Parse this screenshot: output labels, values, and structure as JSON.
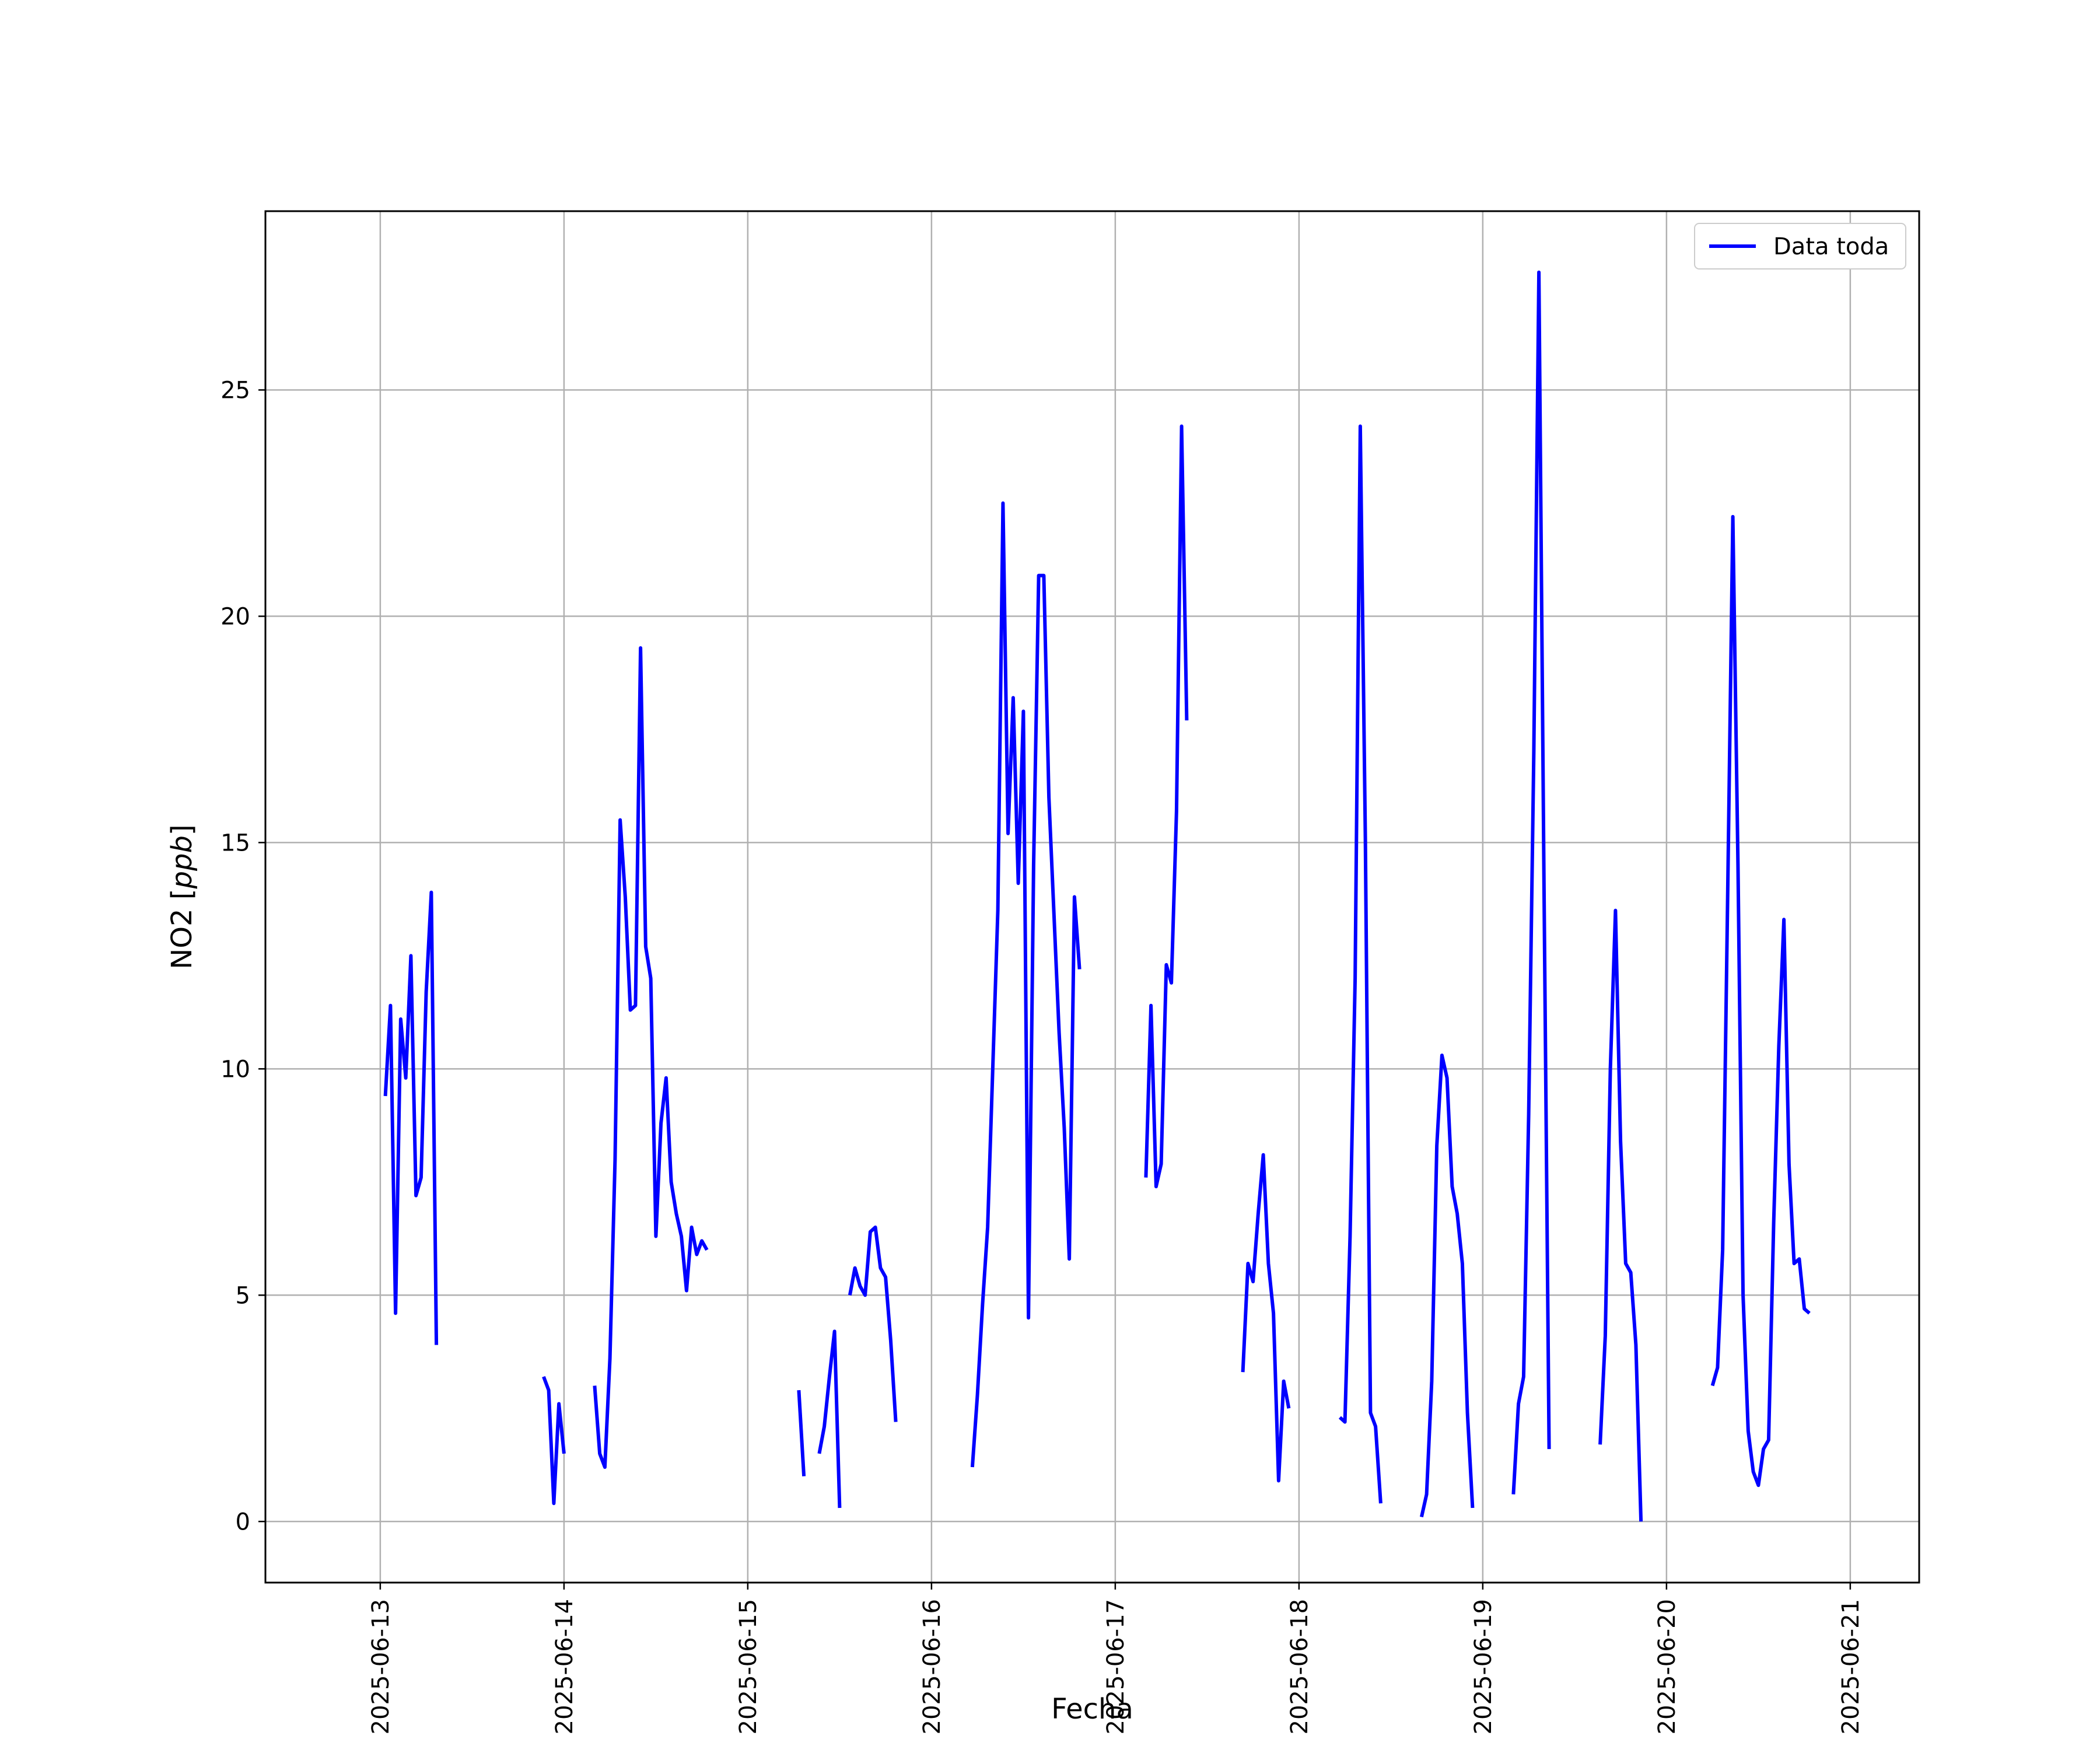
{
  "chart_data": {
    "type": "line",
    "title": "",
    "xlabel": "Fecha",
    "ylabel": "NO2 [ppb]",
    "ylabel_math": "ppb",
    "x_ticks": [
      "2025-06-13",
      "2025-06-14",
      "2025-06-15",
      "2025-06-16",
      "2025-06-17",
      "2025-06-18",
      "2025-06-19",
      "2025-06-20",
      "2025-06-21"
    ],
    "y_ticks": [
      "0",
      "5",
      "10",
      "15",
      "20",
      "25"
    ],
    "ylim": [
      -1.35,
      28.95
    ],
    "xlim": [
      "2025-06-12 09:00",
      "2025-06-21 09:00"
    ],
    "grid": true,
    "legend_position": "top-right",
    "series": [
      {
        "name": "Data toda",
        "color": "#0000ff",
        "segments": [
          [
            [
              "2025-06-13 00:40",
              9.4
            ],
            [
              "2025-06-13 01:20",
              11.4
            ],
            [
              "2025-06-13 02:00",
              4.6
            ],
            [
              "2025-06-13 02:40",
              11.1
            ],
            [
              "2025-06-13 03:20",
              9.8
            ],
            [
              "2025-06-13 04:00",
              12.5
            ],
            [
              "2025-06-13 04:40",
              7.2
            ],
            [
              "2025-06-13 05:20",
              7.6
            ],
            [
              "2025-06-13 06:00",
              11.7
            ],
            [
              "2025-06-13 06:40",
              13.9
            ],
            [
              "2025-06-13 07:20",
              3.9
            ]
          ],
          [
            [
              "2025-06-13 21:20",
              3.2
            ],
            [
              "2025-06-13 22:00",
              2.9
            ],
            [
              "2025-06-13 22:40",
              0.4
            ],
            [
              "2025-06-13 23:20",
              2.6
            ],
            [
              "2025-06-14 00:00",
              1.5
            ]
          ],
          [
            [
              "2025-06-14 04:00",
              3.0
            ],
            [
              "2025-06-14 04:40",
              1.5
            ],
            [
              "2025-06-14 05:20",
              1.2
            ],
            [
              "2025-06-14 06:00",
              3.6
            ],
            [
              "2025-06-14 06:40",
              8.0
            ],
            [
              "2025-06-14 07:20",
              15.5
            ],
            [
              "2025-06-14 08:00",
              13.8
            ],
            [
              "2025-06-14 08:40",
              11.3
            ],
            [
              "2025-06-14 09:20",
              11.4
            ],
            [
              "2025-06-14 10:00",
              19.3
            ],
            [
              "2025-06-14 10:40",
              12.7
            ],
            [
              "2025-06-14 11:20",
              12.0
            ],
            [
              "2025-06-14 12:00",
              6.3
            ],
            [
              "2025-06-14 12:40",
              8.8
            ],
            [
              "2025-06-14 13:20",
              9.8
            ],
            [
              "2025-06-14 14:00",
              7.5
            ],
            [
              "2025-06-14 14:40",
              6.8
            ],
            [
              "2025-06-14 15:20",
              6.3
            ],
            [
              "2025-06-14 16:00",
              5.1
            ],
            [
              "2025-06-14 16:40",
              6.5
            ],
            [
              "2025-06-14 17:20",
              5.9
            ],
            [
              "2025-06-14 18:00",
              6.2
            ],
            [
              "2025-06-14 18:40",
              6.0
            ]
          ],
          [
            [
              "2025-06-15 06:40",
              2.9
            ],
            [
              "2025-06-15 07:20",
              1.0
            ]
          ],
          [
            [
              "2025-06-15 09:20",
              1.5
            ],
            [
              "2025-06-15 10:00",
              2.1
            ],
            [
              "2025-06-15 10:40",
              3.2
            ],
            [
              "2025-06-15 11:20",
              4.2
            ],
            [
              "2025-06-15 12:00",
              0.3
            ]
          ],
          [
            [
              "2025-06-15 13:20",
              5.0
            ],
            [
              "2025-06-15 14:00",
              5.6
            ],
            [
              "2025-06-15 14:40",
              5.2
            ],
            [
              "2025-06-15 15:20",
              5.0
            ],
            [
              "2025-06-15 16:00",
              6.4
            ],
            [
              "2025-06-15 16:40",
              6.5
            ],
            [
              "2025-06-15 17:20",
              5.6
            ],
            [
              "2025-06-15 18:00",
              5.4
            ],
            [
              "2025-06-15 18:40",
              4.0
            ],
            [
              "2025-06-15 19:20",
              2.2
            ]
          ],
          [
            [
              "2025-06-16 05:20",
              1.2
            ],
            [
              "2025-06-16 06:00",
              2.8
            ],
            [
              "2025-06-16 06:40",
              4.8
            ],
            [
              "2025-06-16 07:20",
              6.5
            ],
            [
              "2025-06-16 08:40",
              13.5
            ],
            [
              "2025-06-16 09:20",
              22.5
            ],
            [
              "2025-06-16 10:00",
              15.2
            ],
            [
              "2025-06-16 10:40",
              18.2
            ],
            [
              "2025-06-16 11:20",
              14.1
            ],
            [
              "2025-06-16 12:00",
              17.9
            ],
            [
              "2025-06-16 12:40",
              4.5
            ],
            [
              "2025-06-16 13:20",
              14.5
            ],
            [
              "2025-06-16 14:00",
              20.9
            ],
            [
              "2025-06-16 14:40",
              20.9
            ],
            [
              "2025-06-16 15:20",
              16.0
            ],
            [
              "2025-06-16 16:40",
              10.8
            ],
            [
              "2025-06-16 17:20",
              8.7
            ],
            [
              "2025-06-16 18:00",
              5.8
            ],
            [
              "2025-06-16 18:40",
              13.8
            ],
            [
              "2025-06-16 19:20",
              12.2
            ]
          ],
          [
            [
              "2025-06-17 04:00",
              7.6
            ],
            [
              "2025-06-17 04:40",
              11.4
            ],
            [
              "2025-06-17 05:20",
              7.4
            ],
            [
              "2025-06-17 06:00",
              7.9
            ],
            [
              "2025-06-17 06:40",
              12.3
            ],
            [
              "2025-06-17 07:20",
              11.9
            ],
            [
              "2025-06-17 08:00",
              15.7
            ],
            [
              "2025-06-17 08:40",
              24.2
            ],
            [
              "2025-06-17 09:20",
              17.7
            ]
          ],
          [
            [
              "2025-06-17 16:40",
              3.3
            ],
            [
              "2025-06-17 17:20",
              5.7
            ],
            [
              "2025-06-17 18:00",
              5.3
            ],
            [
              "2025-06-17 18:40",
              6.8
            ],
            [
              "2025-06-17 19:20",
              8.1
            ],
            [
              "2025-06-17 20:00",
              5.7
            ],
            [
              "2025-06-17 20:40",
              4.6
            ],
            [
              "2025-06-17 21:20",
              0.9
            ],
            [
              "2025-06-17 22:00",
              3.1
            ],
            [
              "2025-06-17 22:40",
              2.5
            ]
          ],
          [
            [
              "2025-06-18 05:20",
              2.3
            ],
            [
              "2025-06-18 06:00",
              2.2
            ],
            [
              "2025-06-18 06:40",
              6.3
            ],
            [
              "2025-06-18 07:20",
              12.0
            ],
            [
              "2025-06-18 08:00",
              24.2
            ],
            [
              "2025-06-18 08:40",
              15.1
            ],
            [
              "2025-06-18 09:20",
              2.4
            ],
            [
              "2025-06-18 10:00",
              2.1
            ],
            [
              "2025-06-18 10:40",
              0.4
            ]
          ],
          [
            [
              "2025-06-18 16:00",
              0.1
            ],
            [
              "2025-06-18 16:40",
              0.6
            ],
            [
              "2025-06-18 17:20",
              3.1
            ],
            [
              "2025-06-18 18:00",
              8.3
            ],
            [
              "2025-06-18 18:40",
              10.3
            ],
            [
              "2025-06-18 19:20",
              9.8
            ],
            [
              "2025-06-18 20:00",
              7.4
            ],
            [
              "2025-06-18 20:40",
              6.8
            ],
            [
              "2025-06-18 21:20",
              5.7
            ],
            [
              "2025-06-18 22:00",
              2.4
            ],
            [
              "2025-06-18 22:40",
              0.3
            ]
          ],
          [
            [
              "2025-06-19 04:00",
              0.6
            ],
            [
              "2025-06-19 04:40",
              2.6
            ],
            [
              "2025-06-19 05:20",
              3.2
            ],
            [
              "2025-06-19 06:00",
              9.0
            ],
            [
              "2025-06-19 06:40",
              17.0
            ],
            [
              "2025-06-19 07:20",
              27.6
            ],
            [
              "2025-06-19 08:00",
              14.0
            ],
            [
              "2025-06-19 08:40",
              1.6
            ]
          ],
          [
            [
              "2025-06-19 15:20",
              1.7
            ],
            [
              "2025-06-19 16:00",
              4.1
            ],
            [
              "2025-06-19 16:40",
              10.0
            ],
            [
              "2025-06-19 17:20",
              13.5
            ],
            [
              "2025-06-19 18:00",
              8.4
            ],
            [
              "2025-06-19 18:40",
              5.7
            ],
            [
              "2025-06-19 19:20",
              5.5
            ],
            [
              "2025-06-19 20:00",
              3.9
            ],
            [
              "2025-06-19 20:40",
              0.0
            ]
          ],
          [
            [
              "2025-06-20 06:00",
              3.0
            ],
            [
              "2025-06-20 06:40",
              3.4
            ],
            [
              "2025-06-20 07:20",
              6.0
            ],
            [
              "2025-06-20 08:00",
              14.0
            ],
            [
              "2025-06-20 08:40",
              22.2
            ],
            [
              "2025-06-20 09:20",
              14.5
            ],
            [
              "2025-06-20 10:00",
              5.0
            ],
            [
              "2025-06-20 10:40",
              2.0
            ],
            [
              "2025-06-20 11:20",
              1.1
            ],
            [
              "2025-06-20 12:00",
              0.8
            ],
            [
              "2025-06-20 12:40",
              1.6
            ],
            [
              "2025-06-20 13:20",
              1.8
            ],
            [
              "2025-06-20 14:00",
              6.6
            ],
            [
              "2025-06-20 14:40",
              10.5
            ],
            [
              "2025-06-20 15:20",
              13.3
            ],
            [
              "2025-06-20 16:00",
              7.9
            ],
            [
              "2025-06-20 16:40",
              5.7
            ],
            [
              "2025-06-20 17:20",
              5.8
            ],
            [
              "2025-06-20 18:00",
              4.7
            ],
            [
              "2025-06-20 18:40",
              4.6
            ]
          ]
        ]
      }
    ]
  }
}
